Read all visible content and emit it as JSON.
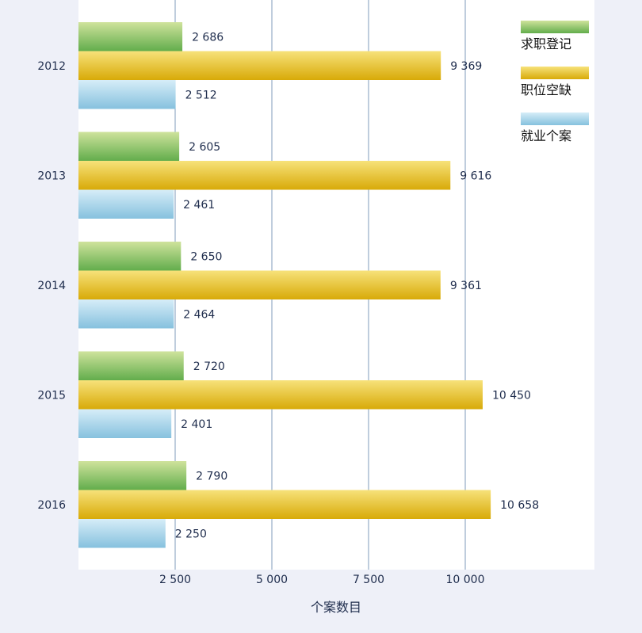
{
  "chart_data": {
    "type": "bar",
    "orientation": "horizontal",
    "categories": [
      "2012",
      "2013",
      "2014",
      "2015",
      "2016"
    ],
    "series": [
      {
        "name": "求职登记",
        "values": [
          2686,
          2605,
          2650,
          2720,
          2790
        ],
        "labels": [
          "2 686",
          "2 605",
          "2 650",
          "2 720",
          "2 790"
        ],
        "color": "#7dbf5e"
      },
      {
        "name": "职位空缺",
        "values": [
          9369,
          9616,
          9361,
          10450,
          10658
        ],
        "labels": [
          "9 369",
          "9 616",
          "9 361",
          "10 450",
          "10 658"
        ],
        "color": "#e8c020"
      },
      {
        "name": "就业个案",
        "values": [
          2512,
          2461,
          2464,
          2401,
          2250
        ],
        "labels": [
          "2 512",
          "2 461",
          "2 464",
          "2 401",
          "2 250"
        ],
        "color": "#a8d3ea"
      }
    ],
    "xticks": [
      2500,
      5000,
      7500,
      10000
    ],
    "xtick_labels": [
      "2 500",
      "5 000",
      "7 500",
      "10  000"
    ],
    "xlim": [
      0,
      13400
    ],
    "xlabel": "个案数目",
    "grid": "vertical",
    "legend_position": "top-right"
  }
}
